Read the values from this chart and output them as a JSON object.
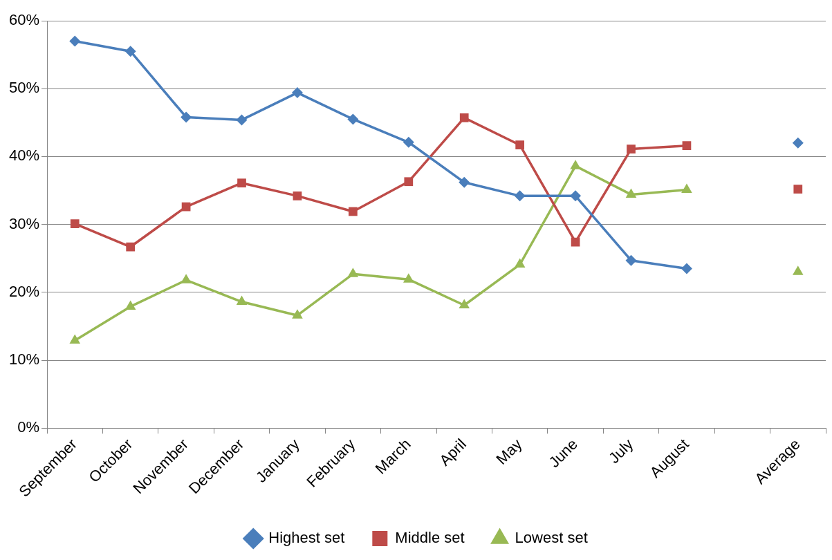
{
  "chart_data": {
    "type": "line",
    "categories": [
      "September",
      "October",
      "November",
      "December",
      "January",
      "February",
      "March",
      "April",
      "May",
      "June",
      "July",
      "August",
      null,
      "Average"
    ],
    "series": [
      {
        "name": "Highest set",
        "color": "#4a7ebb",
        "marker": "diamond",
        "values": [
          57.0,
          55.5,
          45.8,
          45.4,
          49.4,
          45.5,
          42.1,
          36.2,
          34.2,
          34.2,
          24.7,
          23.5,
          null,
          42.0
        ]
      },
      {
        "name": "Middle set",
        "color": "#be4b48",
        "marker": "square",
        "values": [
          30.1,
          26.7,
          32.6,
          36.1,
          34.2,
          31.9,
          36.3,
          45.7,
          41.7,
          27.4,
          41.1,
          41.6,
          null,
          35.2
        ]
      },
      {
        "name": "Lowest set",
        "color": "#98b954",
        "marker": "triangle",
        "values": [
          12.9,
          17.9,
          21.8,
          18.6,
          16.6,
          22.7,
          21.9,
          18.1,
          24.1,
          38.6,
          34.4,
          35.1,
          null,
          23.0
        ]
      }
    ],
    "ylim": [
      0,
      60
    ],
    "yticks": [
      {
        "value": 0,
        "label": "0%"
      },
      {
        "value": 10,
        "label": "10%"
      },
      {
        "value": 20,
        "label": "20%"
      },
      {
        "value": 30,
        "label": "30%"
      },
      {
        "value": 40,
        "label": "40%"
      },
      {
        "value": 50,
        "label": "50%"
      },
      {
        "value": 60,
        "label": "60%"
      }
    ],
    "grid": "y",
    "legend": "bottom",
    "line_style": "solid"
  }
}
